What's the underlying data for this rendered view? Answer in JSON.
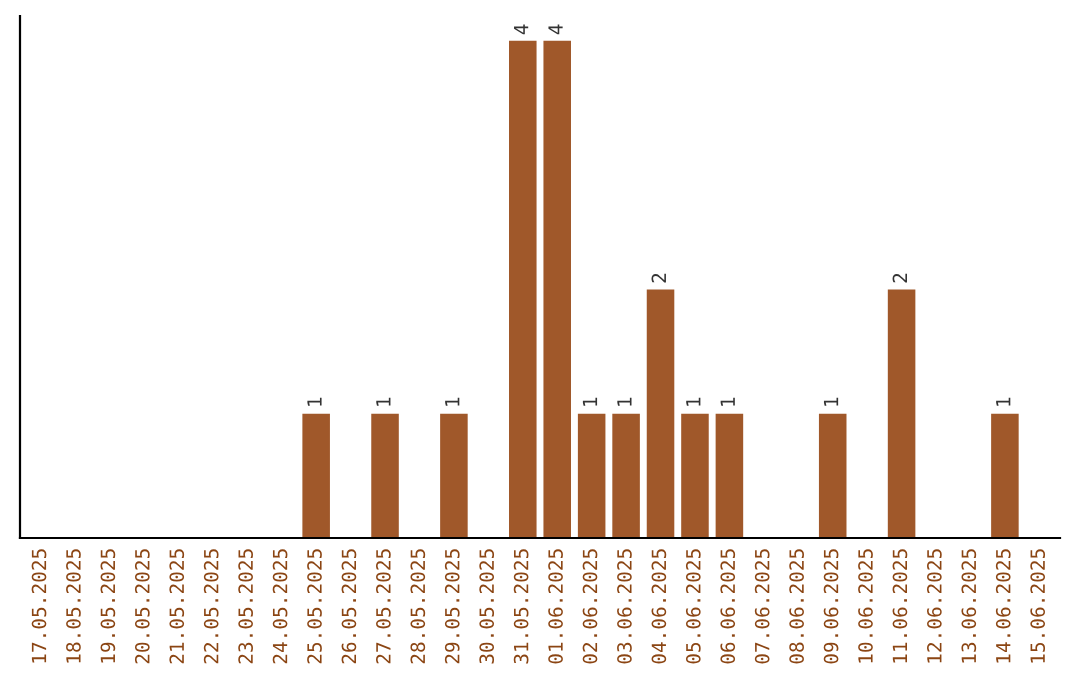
{
  "chart_data": {
    "type": "bar",
    "categories": [
      "17.05.2025",
      "18.05.2025",
      "19.05.2025",
      "20.05.2025",
      "21.05.2025",
      "22.05.2025",
      "23.05.2025",
      "24.05.2025",
      "25.05.2025",
      "26.05.2025",
      "27.05.2025",
      "28.05.2025",
      "29.05.2025",
      "30.05.2025",
      "31.05.2025",
      "01.06.2025",
      "02.06.2025",
      "03.06.2025",
      "04.06.2025",
      "05.06.2025",
      "06.06.2025",
      "07.06.2025",
      "08.06.2025",
      "09.06.2025",
      "10.06.2025",
      "11.06.2025",
      "12.06.2025",
      "13.06.2025",
      "14.06.2025",
      "15.06.2025"
    ],
    "values": [
      0,
      0,
      0,
      0,
      0,
      0,
      0,
      0,
      1,
      0,
      1,
      0,
      1,
      0,
      4,
      4,
      1,
      1,
      2,
      1,
      1,
      0,
      0,
      1,
      0,
      2,
      0,
      0,
      1,
      0
    ],
    "value_labels": [
      null,
      null,
      null,
      null,
      null,
      null,
      null,
      null,
      "1",
      null,
      "1",
      null,
      "1",
      null,
      "4",
      "4",
      "1",
      "1",
      "2",
      "1",
      "1",
      null,
      null,
      "1",
      null,
      "2",
      null,
      null,
      "1",
      null
    ],
    "color": "#a0582a",
    "ylim": [
      0,
      4.2
    ],
    "tick_labels": "x",
    "grid": false,
    "legend": false
  }
}
